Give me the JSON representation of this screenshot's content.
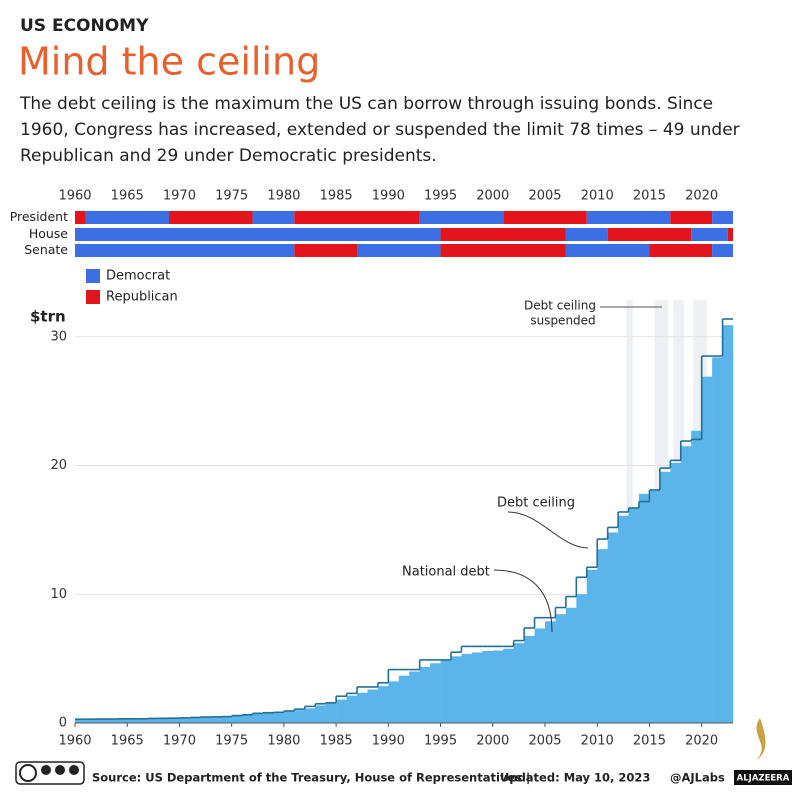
{
  "chart_data": {
    "type": "step-area",
    "kicker": "US ECONOMY",
    "title": "Mind the ceiling",
    "subtitle": [
      "The debt ceiling is the maximum the US can borrow through issuing bonds. Since",
      "1960, Congress has increased, extended or suspended the limit 78 times – 49 under",
      "Republican and 29 under Democratic presidents."
    ],
    "ylabel": "$trn",
    "xlim": [
      1960,
      2023
    ],
    "xticks": [
      1960,
      1965,
      1970,
      1975,
      1980,
      1985,
      1990,
      1995,
      2000,
      2005,
      2010,
      2015,
      2020
    ],
    "ylim": [
      0,
      32
    ],
    "yticks": [
      0,
      10,
      20,
      30
    ],
    "grid": true,
    "parties": [
      {
        "name": "Democrat",
        "color": "#3b6fe3"
      },
      {
        "name": "Republican",
        "color": "#e3141c"
      }
    ],
    "control": [
      {
        "name": "President",
        "segments": [
          {
            "start": 1960,
            "end": 1961,
            "party": "Republican"
          },
          {
            "start": 1961,
            "end": 1969,
            "party": "Democrat"
          },
          {
            "start": 1969,
            "end": 1977,
            "party": "Republican"
          },
          {
            "start": 1977,
            "end": 1981,
            "party": "Democrat"
          },
          {
            "start": 1981,
            "end": 1993,
            "party": "Republican"
          },
          {
            "start": 1993,
            "end": 2001,
            "party": "Democrat"
          },
          {
            "start": 2001,
            "end": 2009,
            "party": "Republican"
          },
          {
            "start": 2009,
            "end": 2017,
            "party": "Democrat"
          },
          {
            "start": 2017,
            "end": 2021,
            "party": "Republican"
          },
          {
            "start": 2021,
            "end": 2023,
            "party": "Democrat"
          }
        ]
      },
      {
        "name": "House",
        "segments": [
          {
            "start": 1960,
            "end": 1995,
            "party": "Democrat"
          },
          {
            "start": 1995,
            "end": 2007,
            "party": "Republican"
          },
          {
            "start": 2007,
            "end": 2011,
            "party": "Democrat"
          },
          {
            "start": 2011,
            "end": 2019,
            "party": "Republican"
          },
          {
            "start": 2019,
            "end": 2022.5,
            "party": "Democrat"
          },
          {
            "start": 2022.5,
            "end": 2023,
            "party": "Republican"
          }
        ]
      },
      {
        "name": "Senate",
        "segments": [
          {
            "start": 1960,
            "end": 1981,
            "party": "Democrat"
          },
          {
            "start": 1981,
            "end": 1987,
            "party": "Republican"
          },
          {
            "start": 1987,
            "end": 1995,
            "party": "Democrat"
          },
          {
            "start": 1995,
            "end": 2007,
            "party": "Republican"
          },
          {
            "start": 2007,
            "end": 2015,
            "party": "Democrat"
          },
          {
            "start": 2015,
            "end": 2021,
            "party": "Republican"
          },
          {
            "start": 2021,
            "end": 2023,
            "party": "Democrat"
          }
        ]
      }
    ],
    "x": [
      1960,
      1961,
      1962,
      1963,
      1964,
      1965,
      1966,
      1967,
      1968,
      1969,
      1970,
      1971,
      1972,
      1973,
      1974,
      1975,
      1976,
      1977,
      1978,
      1979,
      1980,
      1981,
      1982,
      1983,
      1984,
      1985,
      1986,
      1987,
      1988,
      1989,
      1990,
      1991,
      1992,
      1993,
      1994,
      1995,
      1996,
      1997,
      1998,
      1999,
      2000,
      2001,
      2002,
      2003,
      2004,
      2005,
      2006,
      2007,
      2008,
      2009,
      2010,
      2011,
      2012,
      2013,
      2014,
      2015,
      2016,
      2017,
      2018,
      2019,
      2020,
      2021,
      2022
    ],
    "series": [
      {
        "name": "National debt",
        "color": "#5bb5ea",
        "values": [
          0.29,
          0.29,
          0.3,
          0.31,
          0.32,
          0.32,
          0.33,
          0.34,
          0.37,
          0.37,
          0.38,
          0.41,
          0.44,
          0.47,
          0.48,
          0.54,
          0.63,
          0.71,
          0.78,
          0.83,
          0.91,
          1.0,
          1.14,
          1.37,
          1.56,
          1.82,
          2.12,
          2.35,
          2.6,
          2.86,
          3.23,
          3.67,
          4.0,
          4.35,
          4.64,
          4.92,
          5.18,
          5.37,
          5.48,
          5.6,
          5.63,
          5.77,
          6.2,
          6.76,
          7.35,
          7.9,
          8.45,
          8.95,
          10.0,
          11.9,
          13.5,
          14.8,
          16.1,
          16.7,
          17.8,
          18.1,
          19.5,
          20.2,
          21.5,
          22.7,
          26.9,
          28.4,
          30.9
        ]
      },
      {
        "name": "Debt ceiling",
        "color": "#236f96",
        "values": [
          0.293,
          0.298,
          0.308,
          0.309,
          0.324,
          0.328,
          0.33,
          0.358,
          0.365,
          0.377,
          0.395,
          0.43,
          0.465,
          0.475,
          0.495,
          0.577,
          0.636,
          0.752,
          0.798,
          0.83,
          0.935,
          1.079,
          1.29,
          1.49,
          1.57,
          2.08,
          2.3,
          2.8,
          2.8,
          3.12,
          4.15,
          4.15,
          4.15,
          4.9,
          4.9,
          4.9,
          5.5,
          5.95,
          5.95,
          5.95,
          5.95,
          5.95,
          6.4,
          7.38,
          8.18,
          8.18,
          8.97,
          9.82,
          11.32,
          12.1,
          14.29,
          15.19,
          16.39,
          16.7,
          17.2,
          18.1,
          19.8,
          20.4,
          21.9,
          22.03,
          28.5,
          28.5,
          31.38
        ]
      }
    ],
    "suspended": {
      "label": [
        "Debt ceiling",
        "suspended"
      ],
      "periods": [
        [
          2012.8,
          2013.4
        ],
        [
          2015.5,
          2016.8
        ],
        [
          2017.3,
          2018.3
        ],
        [
          2019.2,
          2020.5
        ]
      ]
    },
    "annotations": {
      "ceiling": "Debt ceiling",
      "debt": "National debt"
    },
    "source": "Source: US Department of the Treasury, House of Representatives |",
    "updated": "Updated: May 10, 2023",
    "credit": "@AJLabs",
    "brand": "ALJAZEERA"
  }
}
